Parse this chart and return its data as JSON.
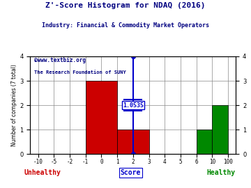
{
  "title": "Z'-Score Histogram for NDAQ (2016)",
  "subtitle": "Industry: Financial & Commodity Market Operators",
  "watermark1": "©www.textbiz.org",
  "watermark2": "The Research Foundation of SUNY",
  "xlabel": "Score",
  "ylabel": "Number of companies (7 total)",
  "bar_edges": [
    -1,
    1,
    3,
    6,
    10,
    100
  ],
  "bar_heights": [
    3,
    1,
    0,
    1,
    2
  ],
  "bar_colors": [
    "#cc0000",
    "#cc0000",
    "#ffffff",
    "#008800",
    "#008800"
  ],
  "score_x": 2.0,
  "score_label": "1.0535",
  "ylim": [
    0,
    4
  ],
  "xticks": [
    -10,
    -5,
    -2,
    -1,
    0,
    1,
    2,
    3,
    4,
    5,
    6,
    10,
    100
  ],
  "yticks": [
    0,
    1,
    2,
    3,
    4
  ],
  "unhealthy_label": "Unhealthy",
  "healthy_label": "Healthy",
  "bg_color": "#ffffff",
  "title_color": "#000080",
  "subtitle_color": "#000080",
  "watermark_color": "#000080",
  "unhealthy_color": "#cc0000",
  "healthy_color": "#008800",
  "score_color": "#0000cc",
  "grid_color": "#888888"
}
